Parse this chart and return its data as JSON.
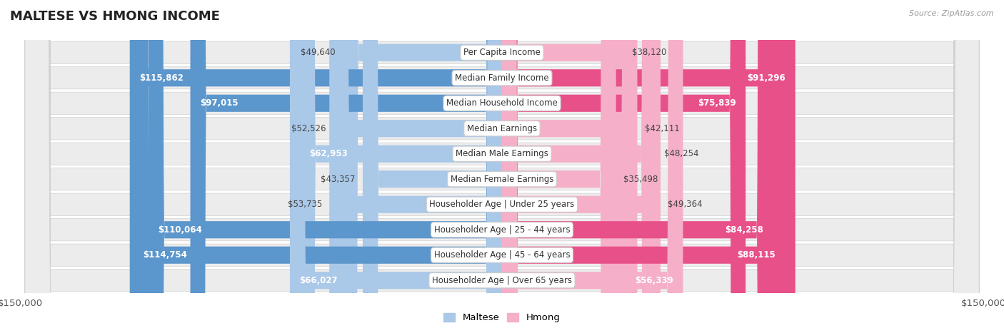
{
  "title": "MALTESE VS HMONG INCOME",
  "source": "Source: ZipAtlas.com",
  "categories": [
    "Per Capita Income",
    "Median Family Income",
    "Median Household Income",
    "Median Earnings",
    "Median Male Earnings",
    "Median Female Earnings",
    "Householder Age | Under 25 years",
    "Householder Age | 25 - 44 years",
    "Householder Age | 45 - 64 years",
    "Householder Age | Over 65 years"
  ],
  "maltese_values": [
    49640,
    115862,
    97015,
    52526,
    62953,
    43357,
    53735,
    110064,
    114754,
    66027
  ],
  "hmong_values": [
    38120,
    91296,
    75839,
    42111,
    48254,
    35498,
    49364,
    84258,
    88115,
    56339
  ],
  "maltese_labels": [
    "$49,640",
    "$115,862",
    "$97,015",
    "$52,526",
    "$62,953",
    "$43,357",
    "$53,735",
    "$110,064",
    "$114,754",
    "$66,027"
  ],
  "hmong_labels": [
    "$38,120",
    "$91,296",
    "$75,839",
    "$42,111",
    "$48,254",
    "$35,498",
    "$49,364",
    "$84,258",
    "$88,115",
    "$56,339"
  ],
  "max_value": 150000,
  "maltese_color_light": "#aac8e8",
  "maltese_color_strong": "#5b96cc",
  "hmong_color_light": "#f5afc8",
  "hmong_color_strong": "#e8508a",
  "row_bg_color": "#ececec",
  "row_border_color": "#d0d0d0",
  "title_color": "#222222",
  "source_color": "#999999",
  "legend_maltese": "Maltese",
  "legend_hmong": "Hmong",
  "axis_label_left": "$150,000",
  "axis_label_right": "$150,000",
  "inner_label_threshold": 55000,
  "cat_label_fontsize": 8.5,
  "val_label_fontsize": 8.5,
  "title_fontsize": 13
}
